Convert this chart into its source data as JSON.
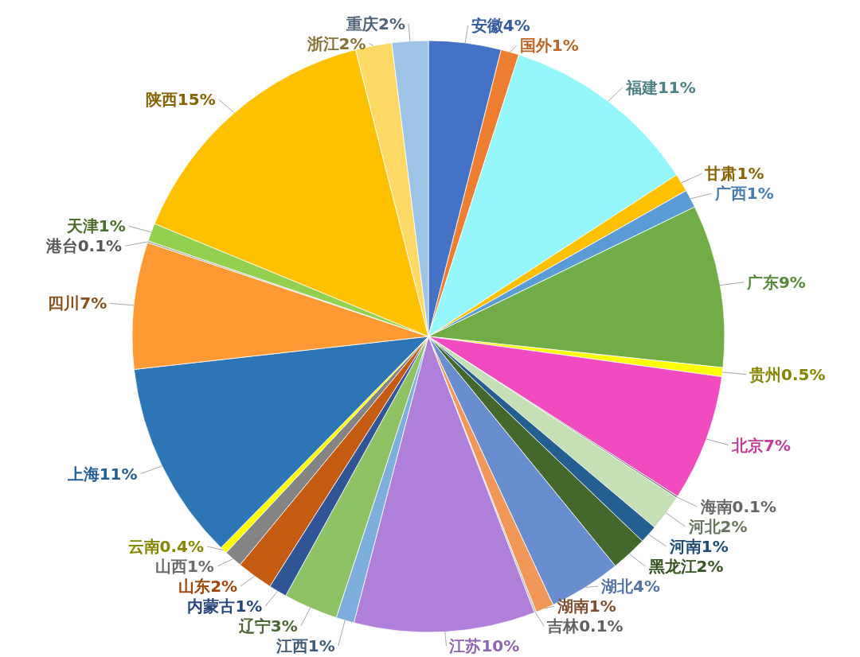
{
  "chart_data": {
    "type": "pie",
    "data_labels": true,
    "categories": [
      "安徽",
      "国外",
      "福建",
      "甘肃",
      "广西",
      "广东",
      "贵州",
      "北京",
      "海南",
      "河北",
      "河南",
      "黑龙江",
      "湖北",
      "湖南",
      "吉林",
      "江苏",
      "江西",
      "辽宁",
      "内蒙古",
      "山东",
      "山西",
      "云南",
      "上海",
      "四川",
      "港台",
      "天津",
      "陕西",
      "浙江",
      "重庆"
    ],
    "values": [
      4,
      1,
      11,
      1,
      1,
      9,
      0.5,
      7,
      0.1,
      2,
      1,
      2,
      4,
      1,
      0.1,
      10,
      1,
      3,
      1,
      2,
      1,
      0.4,
      11,
      7,
      0.1,
      1,
      15,
      2,
      2
    ],
    "value_labels": [
      "4%",
      "1%",
      "11%",
      "1%",
      "1%",
      "9%",
      "0.5%",
      "7%",
      "0.1%",
      "2%",
      "1%",
      "2%",
      "4%",
      "1%",
      "0.1%",
      "10%",
      "1%",
      "3%",
      "1%",
      "2%",
      "1%",
      "0.4%",
      "11%",
      "7%",
      "0.1%",
      "1%",
      "15%",
      "2%",
      "2%"
    ],
    "colors": [
      "#4472c4",
      "#ed7d31",
      "#95f6fc",
      "#ffc000",
      "#5b9bd5",
      "#70ad47",
      "#ffff00",
      "#f04bbf",
      "#7f7f7f",
      "#c5e0b4",
      "#255e91",
      "#43682b",
      "#698ed0",
      "#f1975a",
      "#b7b7b7",
      "#b07fd9",
      "#7cafdd",
      "#8fc263",
      "#2f5597",
      "#c55a11",
      "#848484",
      "#ffff00",
      "#2e75b6",
      "#ff9933",
      "#a5a5a5",
      "#92d050",
      "#ffc000",
      "#ffd966",
      "#9dc3e6"
    ]
  }
}
